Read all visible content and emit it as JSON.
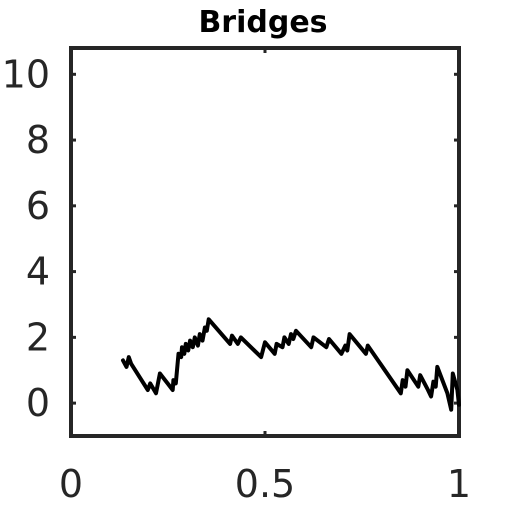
{
  "chart_data": {
    "type": "line",
    "title": "Bridges",
    "xlabel": "",
    "ylabel": "",
    "xlim": [
      0,
      1
    ],
    "ylim": [
      -1,
      10.8
    ],
    "xticks": [
      0,
      0.5,
      1
    ],
    "xtick_labels": [
      "0",
      "0.5",
      "1"
    ],
    "yticks": [
      0,
      2,
      4,
      6,
      8,
      10
    ],
    "ytick_labels": [
      "0",
      "2",
      "4",
      "6",
      "8",
      "10"
    ],
    "grid": false,
    "series": [
      {
        "color": "#000000",
        "points": [
          [
            0.134,
            1.3
          ],
          [
            0.143,
            1.1
          ],
          [
            0.149,
            1.4
          ],
          [
            0.155,
            1.2
          ],
          [
            0.198,
            0.4
          ],
          [
            0.204,
            0.6
          ],
          [
            0.219,
            0.3
          ],
          [
            0.229,
            0.9
          ],
          [
            0.249,
            0.6
          ],
          [
            0.262,
            0.4
          ],
          [
            0.264,
            0.7
          ],
          [
            0.27,
            0.6
          ],
          [
            0.277,
            1.5
          ],
          [
            0.284,
            1.4
          ],
          [
            0.286,
            1.7
          ],
          [
            0.292,
            1.5
          ],
          [
            0.296,
            1.8
          ],
          [
            0.302,
            1.6
          ],
          [
            0.307,
            1.9
          ],
          [
            0.314,
            1.7
          ],
          [
            0.319,
            2.0
          ],
          [
            0.327,
            1.75
          ],
          [
            0.332,
            2.1
          ],
          [
            0.339,
            1.9
          ],
          [
            0.345,
            2.3
          ],
          [
            0.35,
            2.2
          ],
          [
            0.355,
            2.55
          ],
          [
            0.41,
            1.8
          ],
          [
            0.415,
            2.05
          ],
          [
            0.43,
            1.8
          ],
          [
            0.438,
            2.0
          ],
          [
            0.49,
            1.4
          ],
          [
            0.5,
            1.85
          ],
          [
            0.525,
            1.5
          ],
          [
            0.53,
            1.8
          ],
          [
            0.545,
            1.7
          ],
          [
            0.55,
            2.0
          ],
          [
            0.561,
            1.8
          ],
          [
            0.567,
            2.1
          ],
          [
            0.573,
            1.95
          ],
          [
            0.58,
            2.2
          ],
          [
            0.619,
            1.7
          ],
          [
            0.625,
            2.0
          ],
          [
            0.658,
            1.7
          ],
          [
            0.665,
            1.95
          ],
          [
            0.697,
            1.5
          ],
          [
            0.707,
            1.75
          ],
          [
            0.712,
            1.6
          ],
          [
            0.718,
            2.1
          ],
          [
            0.76,
            1.5
          ],
          [
            0.765,
            1.75
          ],
          [
            0.85,
            0.3
          ],
          [
            0.855,
            0.7
          ],
          [
            0.862,
            0.5
          ],
          [
            0.867,
            1.0
          ],
          [
            0.895,
            0.5
          ],
          [
            0.9,
            0.85
          ],
          [
            0.92,
            0.4
          ],
          [
            0.928,
            0.2
          ],
          [
            0.934,
            0.65
          ],
          [
            0.94,
            0.5
          ],
          [
            0.944,
            1.1
          ],
          [
            0.97,
            0.3
          ],
          [
            0.98,
            -0.2
          ],
          [
            0.984,
            0.9
          ],
          [
            0.996,
            0.4
          ],
          [
            1.0,
            -0.05
          ]
        ]
      }
    ]
  }
}
